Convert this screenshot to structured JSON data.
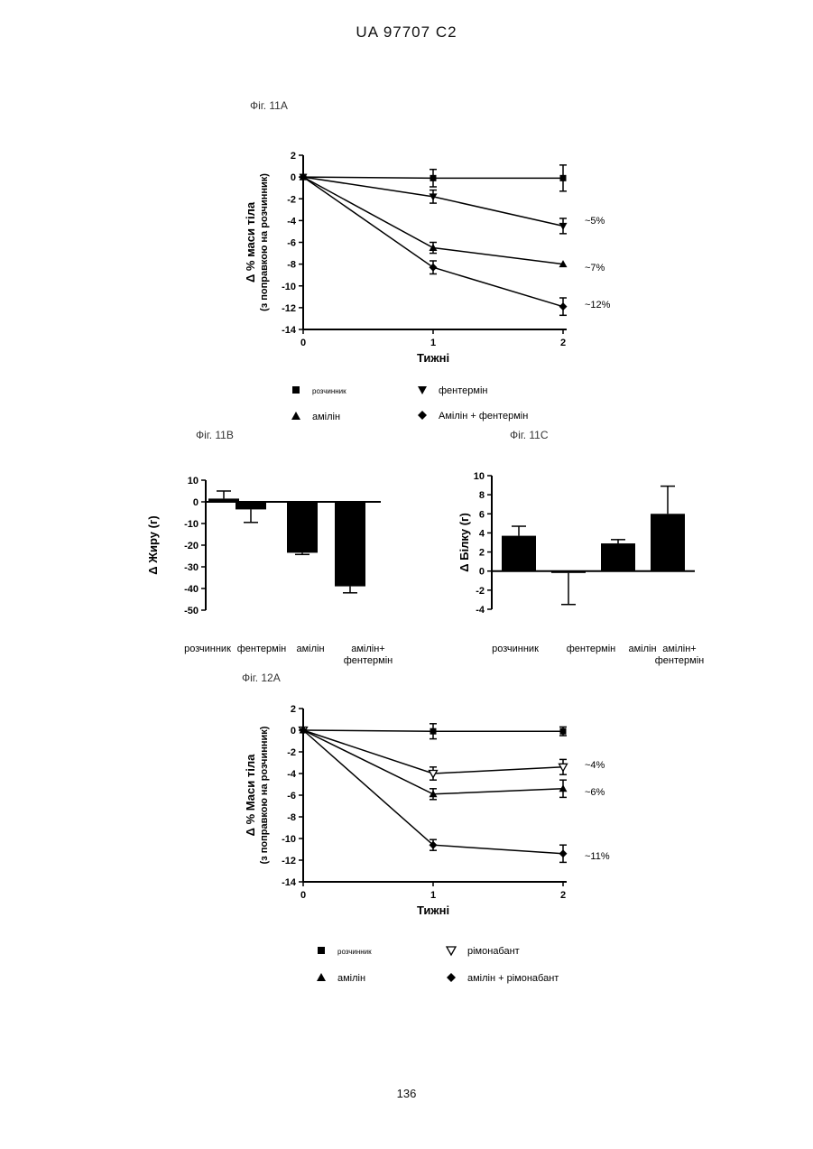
{
  "header": "UA   97707   C2",
  "page_number": "136",
  "figures": {
    "fig11a": {
      "label": "Фіг. 11А",
      "xlabel": "Тижні",
      "ylabel": "Δ %  маси тіла",
      "ylabel_sub": "(з поправкою на розчинник)",
      "annotations": [
        "~5%",
        "~7%",
        "~12%"
      ],
      "legend": [
        "розчинник",
        "фентермін",
        "амілін",
        "Амілін + фентермін"
      ]
    },
    "fig11b": {
      "label": "Фіг. 11В",
      "ylabel": "Δ  Жиру (г)",
      "categories": [
        "розчинник",
        "фентермін",
        "амілін",
        "амілін+ фентермін"
      ]
    },
    "fig11c": {
      "label": "Фіг. 11С",
      "ylabel": "Δ  Білку (г)",
      "categories": [
        "розчинник",
        "фентермін",
        "амілін",
        "амілін+ фентермін"
      ]
    },
    "fig12a": {
      "label": "Фіг. 12А",
      "xlabel": "Тижні",
      "ylabel": "Δ %  Маси тіла",
      "ylabel_sub": "(з поправкою на розчинник)",
      "annotations": [
        "~4%",
        "~6%",
        "~11%"
      ],
      "legend": [
        "розчинник",
        "рімонабант",
        "амілін",
        "амілін + рімонабант"
      ]
    }
  },
  "chart_data": [
    {
      "type": "line",
      "x": [
        0,
        1,
        2
      ],
      "xlabel": "Тижні",
      "ylabel": "Δ %  маси тіла (з поправкою на розчинник)",
      "ylim": [
        -14,
        2
      ],
      "xticks": [
        0,
        1,
        2
      ],
      "yticks": [
        2,
        0,
        -2,
        -4,
        -6,
        -8,
        -10,
        -12,
        -14
      ],
      "series": [
        {
          "name": "розчинник",
          "marker": "square",
          "values": [
            0,
            -0.1,
            -0.1
          ],
          "errors": [
            0,
            0.8,
            1.2
          ]
        },
        {
          "name": "фентермін",
          "marker": "triangle-down",
          "values": [
            0,
            -1.8,
            -4.5
          ],
          "errors": [
            0,
            0.6,
            0.7
          ]
        },
        {
          "name": "амілін",
          "marker": "triangle-up",
          "values": [
            0,
            -6.5,
            -8.0
          ],
          "errors": [
            0,
            0.5,
            0
          ]
        },
        {
          "name": "Амілін + фентермін",
          "marker": "diamond",
          "values": [
            0,
            -8.3,
            -11.9
          ],
          "errors": [
            0,
            0.6,
            0.8
          ]
        }
      ]
    },
    {
      "type": "bar",
      "categories": [
        "розчинник",
        "фентермін",
        "амілін",
        "амілін+ фентермін"
      ],
      "values": [
        1.5,
        -3.5,
        -23.5,
        -39
      ],
      "errors": [
        3.5,
        6,
        0.8,
        3
      ],
      "ylabel": "Δ  Жиру (г)",
      "ylim": [
        -50,
        10
      ],
      "yticks": [
        10,
        0,
        -10,
        -20,
        -30,
        -40,
        -50
      ]
    },
    {
      "type": "bar",
      "categories": [
        "розчинник",
        "фентермін",
        "амілін",
        "амілін+ фентермін"
      ],
      "values": [
        3.7,
        -0.2,
        2.9,
        6.0
      ],
      "errors": [
        1.0,
        3.3,
        0.4,
        2.9
      ],
      "ylabel": "Δ  Білку (г)",
      "ylim": [
        -4,
        10
      ],
      "yticks": [
        10,
        8,
        6,
        4,
        2,
        0,
        -2,
        -4
      ]
    },
    {
      "type": "line",
      "x": [
        0,
        1,
        2
      ],
      "xlabel": "Тижні",
      "ylabel": "Δ %  Маси тіла (з поправкою на розчинник)",
      "ylim": [
        -14,
        2
      ],
      "xticks": [
        0,
        1,
        2
      ],
      "yticks": [
        2,
        0,
        -2,
        -4,
        -6,
        -8,
        -10,
        -12,
        -14
      ],
      "series": [
        {
          "name": "розчинник",
          "marker": "square",
          "values": [
            0,
            -0.1,
            -0.1
          ],
          "errors": [
            0,
            0.7,
            0.4
          ]
        },
        {
          "name": "рімонабант",
          "marker": "triangle-down-open",
          "values": [
            0,
            -4.0,
            -3.4
          ],
          "errors": [
            0,
            0.6,
            0.7
          ]
        },
        {
          "name": "амілін",
          "marker": "triangle-up",
          "values": [
            0,
            -5.9,
            -5.4
          ],
          "errors": [
            0,
            0.5,
            0.8
          ]
        },
        {
          "name": "амілін + рімонабант",
          "marker": "diamond",
          "values": [
            0,
            -10.6,
            -11.4
          ],
          "errors": [
            0,
            0.5,
            0.8
          ]
        }
      ]
    }
  ]
}
